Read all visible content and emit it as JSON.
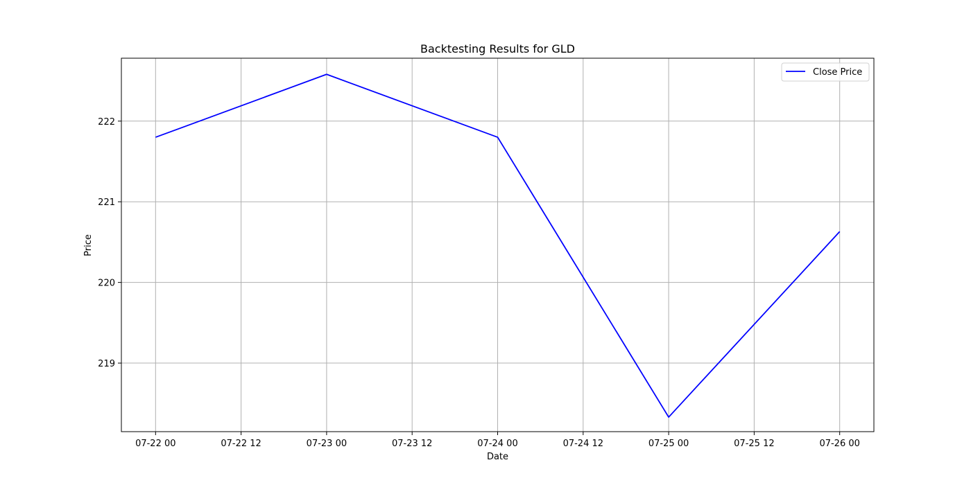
{
  "chart_data": {
    "type": "line",
    "title": "Backtesting Results for GLD",
    "xlabel": "Date",
    "ylabel": "Price",
    "x_tick_labels": [
      "07-22 00",
      "07-22 12",
      "07-23 00",
      "07-23 12",
      "07-24 00",
      "07-24 12",
      "07-25 00",
      "07-25 12",
      "07-26 00"
    ],
    "y_ticks": [
      219,
      220,
      221,
      222
    ],
    "xlim": [
      "2024-07-21 19:12",
      "2024-07-26 04:48"
    ],
    "ylim": [
      218.15,
      222.78
    ],
    "grid": true,
    "legend_position": "upper right",
    "series": [
      {
        "name": "Close Price",
        "color": "#0000ff",
        "points": [
          {
            "x": "2024-07-22 00:00",
            "y": 221.8
          },
          {
            "x": "2024-07-23 00:00",
            "y": 222.58
          },
          {
            "x": "2024-07-24 00:00",
            "y": 221.8
          },
          {
            "x": "2024-07-25 00:00",
            "y": 218.33
          },
          {
            "x": "2024-07-26 00:00",
            "y": 220.63
          }
        ]
      }
    ]
  }
}
